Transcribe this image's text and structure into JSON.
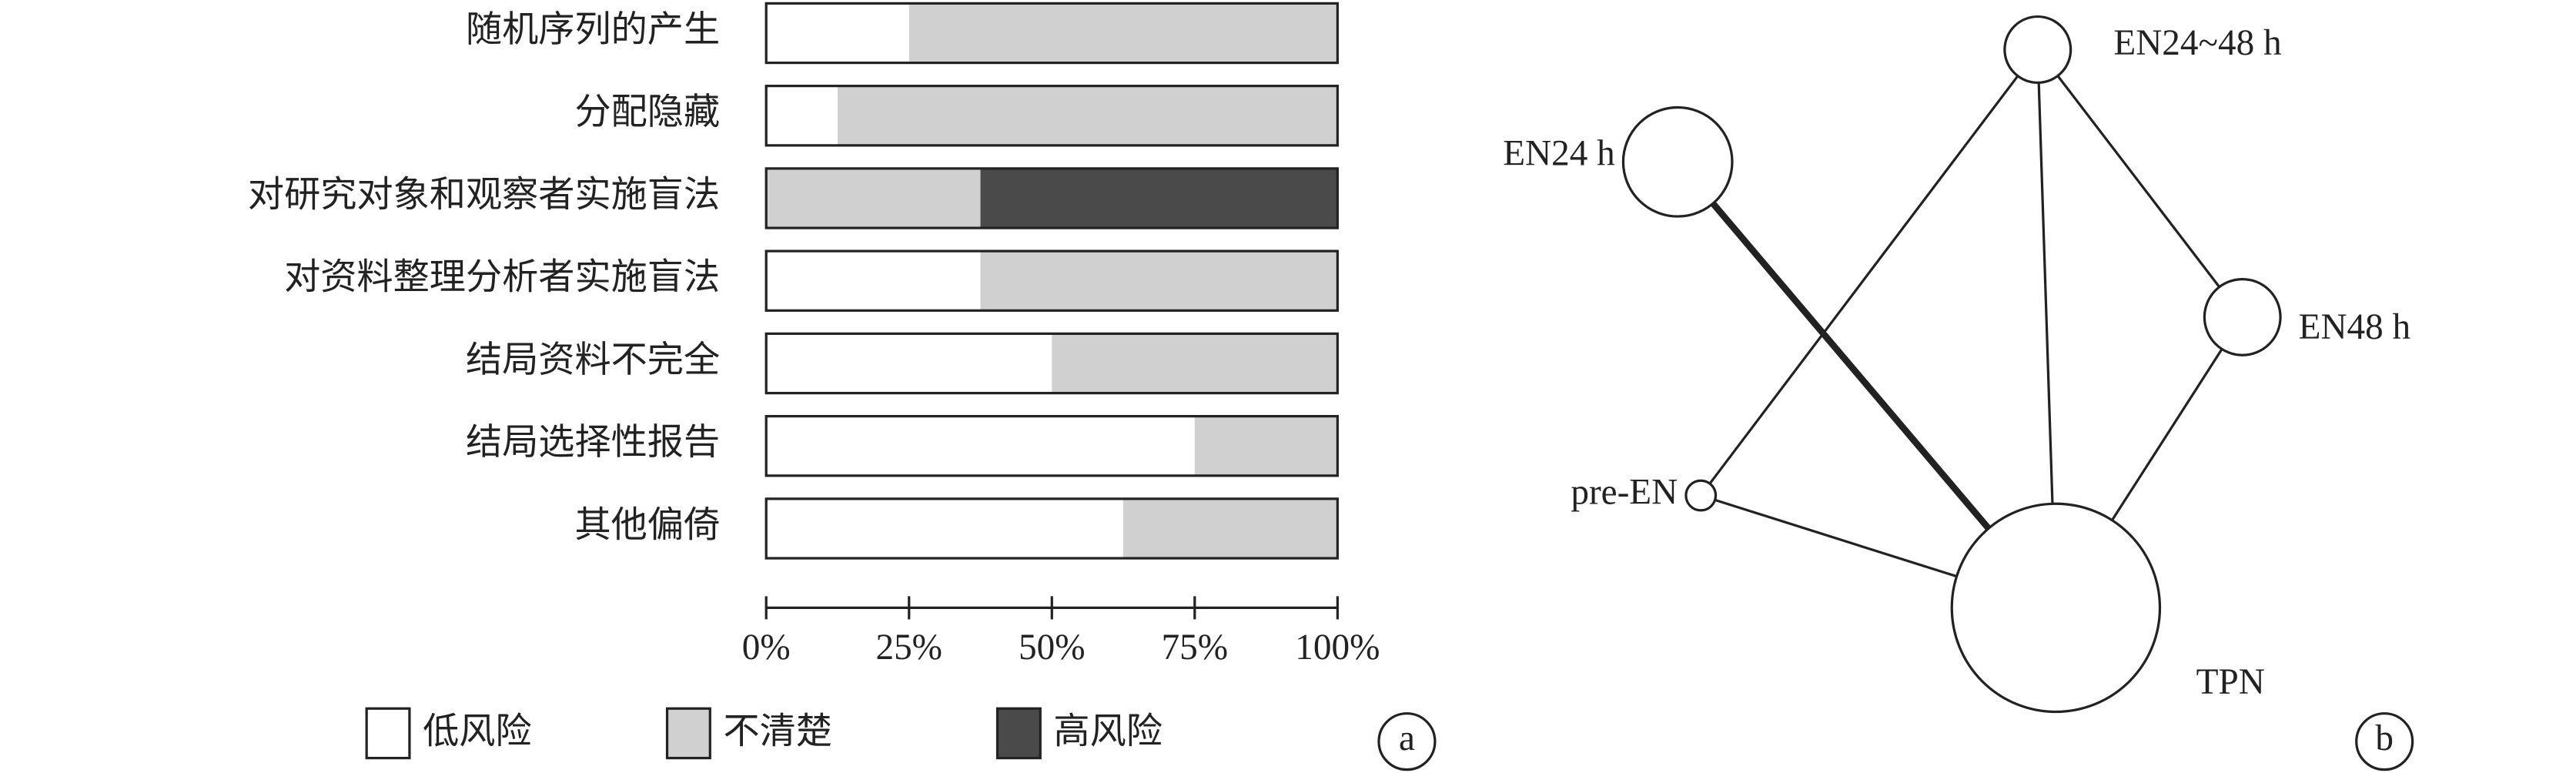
{
  "chart_data": [
    {
      "type": "stacked-barh",
      "panel_label": "a",
      "categories": [
        "随机序列的产生",
        "分配隐藏",
        "对研究对象和观察者实施盲法",
        "对资料整理分析者实施盲法",
        "结局资料不完全",
        "结局选择性报告",
        "其他偏倚"
      ],
      "series": [
        {
          "name": "低风险",
          "color": "#ffffff",
          "values": [
            25,
            12.5,
            0,
            37.5,
            50,
            75,
            62.5
          ]
        },
        {
          "name": "不清楚",
          "color": "#d0d0d0",
          "values": [
            75,
            87.5,
            37.5,
            62.5,
            50,
            25,
            37.5
          ]
        },
        {
          "name": "高风险",
          "color": "#4a4a4a",
          "values": [
            0,
            0,
            62.5,
            0,
            0,
            0,
            0
          ]
        }
      ],
      "xlim": [
        0,
        100
      ],
      "xticks": [
        {
          "value": 0,
          "label": "0%"
        },
        {
          "value": 25,
          "label": "25%"
        },
        {
          "value": 50,
          "label": "50%"
        },
        {
          "value": 75,
          "label": "75%"
        },
        {
          "value": 100,
          "label": "100%"
        }
      ]
    },
    {
      "type": "network",
      "panel_label": "b",
      "nodes": [
        {
          "label": "EN24~48 h"
        },
        {
          "label": "EN24 h"
        },
        {
          "label": "EN48 h"
        },
        {
          "label": "pre-EN"
        },
        {
          "label": "TPN"
        }
      ],
      "edges": [
        {
          "from": 0,
          "to": 2
        },
        {
          "from": 0,
          "to": 4
        },
        {
          "from": 0,
          "to": 3
        },
        {
          "from": 1,
          "to": 4,
          "bold": true
        },
        {
          "from": 2,
          "to": 4
        },
        {
          "from": 3,
          "to": 4
        }
      ]
    }
  ]
}
